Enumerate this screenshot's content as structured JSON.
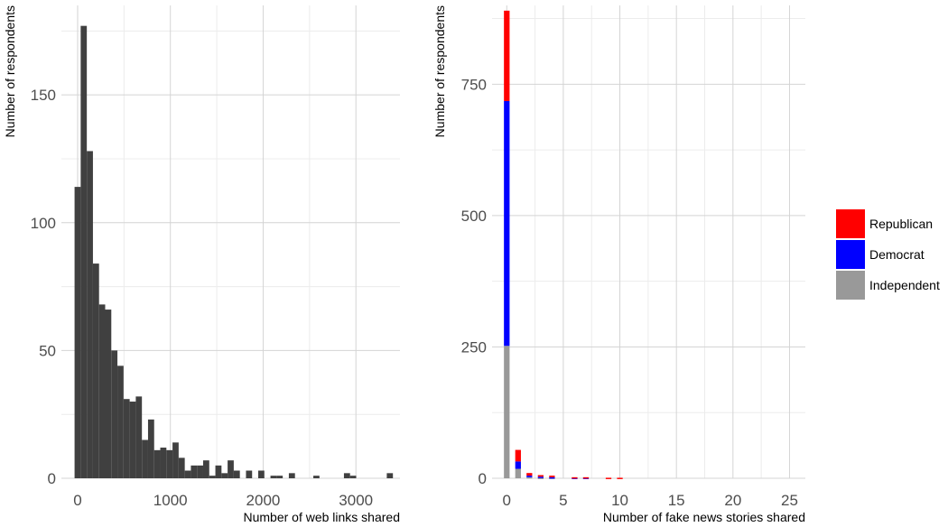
{
  "chart_data": [
    {
      "type": "bar",
      "subtype": "histogram",
      "title": "",
      "xlabel": "Number of web links shared",
      "ylabel": "Number of respondents",
      "xlim": [
        -175,
        3475
      ],
      "ylim": [
        0,
        185
      ],
      "xticks": [
        0,
        1000,
        2000,
        3000
      ],
      "xtick_labels": [
        "0",
        "1000",
        "2000",
        "3000"
      ],
      "yticks": [
        0,
        50,
        100,
        150
      ],
      "ytick_labels": [
        "0",
        "50",
        "100",
        "150"
      ],
      "bin_width": 66,
      "bar_color": "#404040",
      "bins_start": [
        -33,
        33,
        99,
        165,
        231,
        297,
        363,
        429,
        495,
        561,
        627,
        693,
        759,
        825,
        891,
        957,
        1023,
        1089,
        1155,
        1221,
        1287,
        1353,
        1419,
        1485,
        1551,
        1617,
        1683,
        1749,
        1815,
        1881,
        1947,
        2013,
        2079,
        2145,
        2211,
        2277,
        2343,
        2409,
        2475,
        2541,
        2607,
        2673,
        2739,
        2805,
        2871,
        2937,
        3003,
        3069,
        3135,
        3201,
        3267,
        3333
      ],
      "values": [
        114,
        177,
        128,
        84,
        68,
        66,
        50,
        44,
        31,
        30,
        32,
        15,
        23,
        11,
        12,
        11,
        14,
        8,
        3,
        5,
        5,
        7,
        1,
        5,
        2,
        7,
        3,
        0,
        3,
        0,
        3,
        0,
        1,
        1,
        0,
        2,
        0,
        0,
        0,
        1,
        0,
        0,
        0,
        0,
        2,
        1,
        0,
        0,
        0,
        0,
        0,
        2
      ],
      "grid": true
    },
    {
      "type": "bar",
      "subtype": "stacked",
      "title": "",
      "xlabel": "Number of fake news stories shared",
      "ylabel": "Number of respondents",
      "xlim": [
        -1.3,
        26.4
      ],
      "ylim": [
        0,
        900
      ],
      "xticks": [
        0,
        5,
        10,
        15,
        20,
        25
      ],
      "xtick_labels": [
        "0",
        "5",
        "10",
        "15",
        "20",
        "25"
      ],
      "yticks": [
        0,
        250,
        500,
        750
      ],
      "ytick_labels": [
        "0",
        "250",
        "500",
        "750"
      ],
      "bar_width": 0.5,
      "x": [
        0,
        1,
        2,
        3,
        4,
        6,
        7,
        9,
        10
      ],
      "series": [
        {
          "name": "Independent",
          "color": "#999999",
          "values": [
            252,
            18,
            2,
            1,
            1,
            0,
            0,
            0,
            0
          ]
        },
        {
          "name": "Democrat",
          "color": "#0000ff",
          "values": [
            466,
            14,
            3,
            2,
            1,
            1,
            1,
            0,
            0
          ]
        },
        {
          "name": "Republican",
          "color": "#ff0000",
          "values": [
            172,
            22,
            5,
            3,
            3,
            1,
            1,
            1,
            1
          ]
        }
      ],
      "legend": {
        "position": "right",
        "order": [
          "Republican",
          "Democrat",
          "Independent"
        ]
      },
      "grid": true
    }
  ]
}
